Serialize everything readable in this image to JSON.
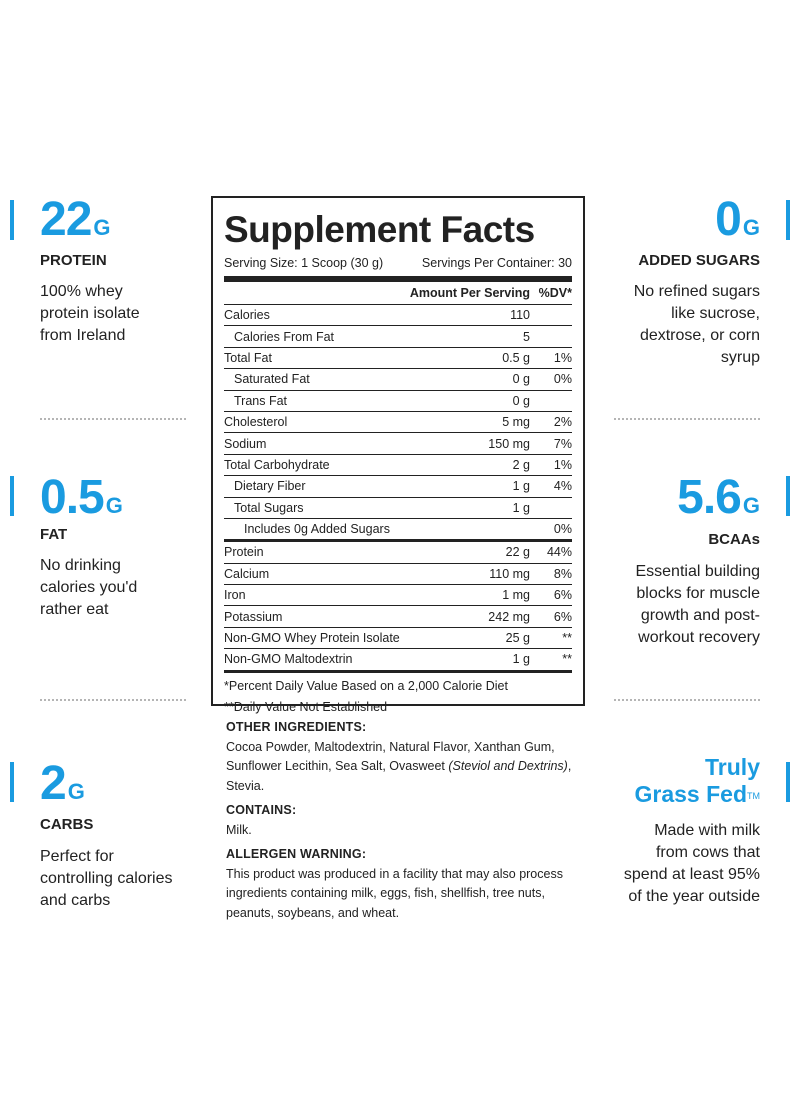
{
  "stats": {
    "protein": {
      "value": "22",
      "unit": "G",
      "label": "PROTEIN",
      "desc": [
        "100% whey",
        "protein isolate",
        "from Ireland"
      ]
    },
    "fat": {
      "value": "0.5",
      "unit": "G",
      "label": "FAT",
      "desc": [
        "No drinking",
        "calories you'd",
        "rather eat"
      ]
    },
    "carbs": {
      "value": "2",
      "unit": "G",
      "label": "CARBS",
      "desc": [
        "Perfect for",
        "controlling calories",
        "and carbs"
      ]
    },
    "added_sugars": {
      "value": "0",
      "unit": "G",
      "label": "ADDED SUGARS",
      "desc": [
        "No refined sugars",
        "like sucrose,",
        "dextrose, or corn",
        "syrup"
      ]
    },
    "bcaas": {
      "value": "5.6",
      "unit": "G",
      "label": "BCAAs",
      "desc": [
        "Essential building",
        "blocks for muscle",
        "growth and post-",
        "workout recovery"
      ]
    },
    "grass_fed": {
      "line1": "Truly",
      "line2": "Grass Fed",
      "tm": "TM",
      "desc": [
        "Made with milk",
        "from cows that",
        "spend at least 95%",
        "of the year outside"
      ]
    }
  },
  "facts": {
    "title": "Supplement Facts",
    "serving_size": "Serving Size: 1 Scoop (30 g)",
    "servings_per_container": "Servings Per Container: 30",
    "header_amount": "Amount Per Serving",
    "header_dv": "%DV*",
    "rows": [
      {
        "name": "Calories",
        "amount": "110",
        "dv": ""
      },
      {
        "name": "Calories From Fat",
        "amount": "5",
        "dv": ""
      },
      {
        "name": "Total Fat",
        "amount": "0.5 g",
        "dv": "1%"
      },
      {
        "name": "Saturated Fat",
        "amount": "0 g",
        "dv": "0%"
      },
      {
        "name": "Trans Fat",
        "amount": "0 g",
        "dv": ""
      },
      {
        "name": "Cholesterol",
        "amount": "5 mg",
        "dv": "2%"
      },
      {
        "name": "Sodium",
        "amount": "150 mg",
        "dv": "7%"
      },
      {
        "name": "Total Carbohydrate",
        "amount": "2 g",
        "dv": "1%"
      },
      {
        "name": "Dietary Fiber",
        "amount": "1 g",
        "dv": "4%"
      },
      {
        "name": "Total Sugars",
        "amount": "1 g",
        "dv": ""
      },
      {
        "name": "Includes 0g Added Sugars",
        "amount": "",
        "dv": "0%"
      },
      {
        "name": "Protein",
        "amount": "22 g",
        "dv": "44%"
      },
      {
        "name": "Calcium",
        "amount": "110 mg",
        "dv": "8%"
      },
      {
        "name": "Iron",
        "amount": "1 mg",
        "dv": "6%"
      },
      {
        "name": "Potassium",
        "amount": "242 mg",
        "dv": "6%"
      },
      {
        "name": "Non-GMO Whey Protein Isolate",
        "amount": "25 g",
        "dv": "**"
      },
      {
        "name": "Non-GMO Maltodextrin",
        "amount": "1 g",
        "dv": "**"
      }
    ],
    "footnote_1": "*Percent Daily Value Based on a 2,000 Calorie Diet",
    "footnote_2": "**Daily Value Not Established"
  },
  "ingredients": {
    "other_heading": "OTHER INGREDIENTS:",
    "other_text_a": "Cocoa Powder, Maltodextrin, Natural Flavor, Xanthan Gum, Sunflower Lecithin, Sea Salt, Ovasweet ",
    "other_text_italic": "(Steviol and Dextrins)",
    "other_text_b": ", Stevia.",
    "contains_heading": "CONTAINS:",
    "contains_text": "Milk.",
    "allergen_heading": "ALLERGEN WARNING:",
    "allergen_text": "This product was produced in a facility that may also process ingredients containing milk, eggs, fish, shellfish, tree nuts, peanuts, soybeans, and wheat."
  },
  "colors": {
    "accent": "#1a9be0",
    "text": "#222222",
    "divider": "#b5b5b5"
  }
}
